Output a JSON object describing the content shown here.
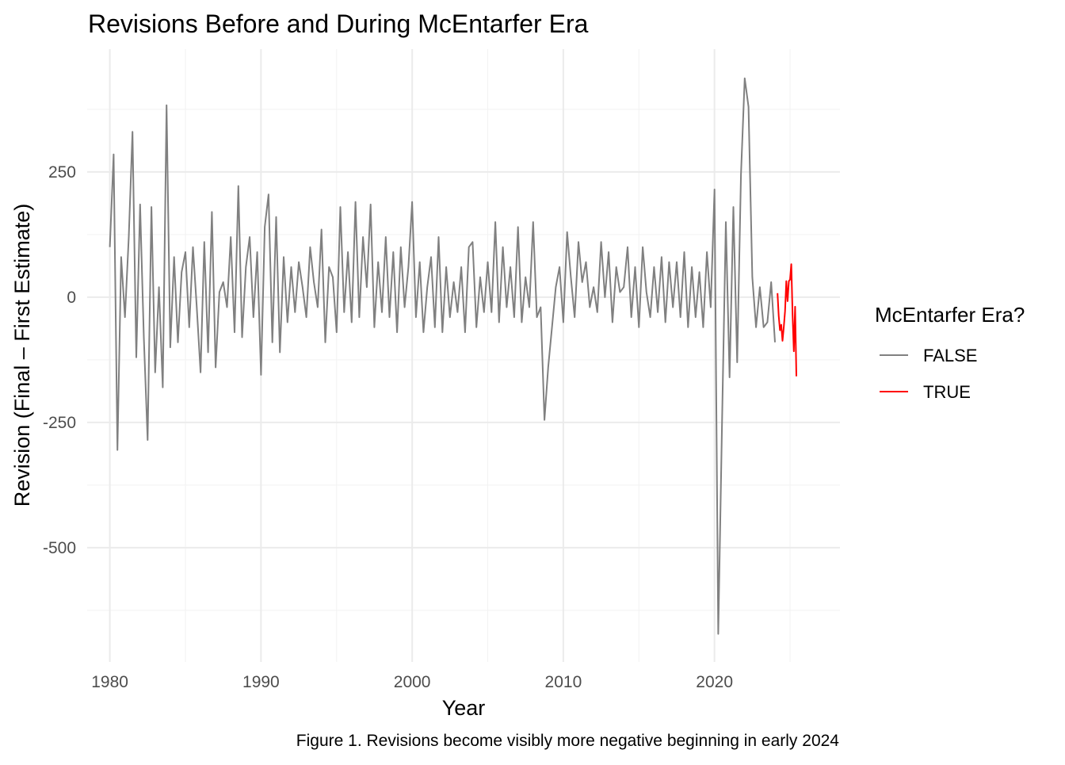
{
  "chart_data": {
    "type": "line",
    "title": "Revisions Before and During McEntarfer Era",
    "xlabel": "Year",
    "ylabel": "Revision (Final – First Estimate)",
    "caption": "Figure 1. Revisions become visibly more negative beginning in early 2024",
    "xlim": [
      1978.5,
      2028.3
    ],
    "ylim": [
      -728,
      495
    ],
    "x_ticks": [
      1980,
      1990,
      2000,
      2010,
      2020
    ],
    "x_tick_labels": [
      "1980",
      "1990",
      "2000",
      "2010",
      "2020"
    ],
    "y_ticks": [
      250,
      0,
      -250,
      -500
    ],
    "y_tick_labels": [
      "250",
      "0",
      "-250",
      "-500"
    ],
    "grid": true,
    "legend": {
      "title": "McEntarfer Era?",
      "placement": "right",
      "entries": [
        {
          "label": "FALSE",
          "color": "#808080"
        },
        {
          "label": "TRUE",
          "color": "#ff0000"
        }
      ]
    },
    "series": [
      {
        "name": "FALSE",
        "color": "#808080",
        "x_start": 1980.0,
        "x_step": 0.25,
        "values": [
          100,
          285,
          -305,
          80,
          -40,
          120,
          330,
          -120,
          185,
          -80,
          -285,
          180,
          -150,
          20,
          -180,
          383,
          -100,
          80,
          -90,
          50,
          90,
          -60,
          100,
          -20,
          -150,
          110,
          -110,
          170,
          -140,
          10,
          30,
          -20,
          120,
          -70,
          222,
          -80,
          60,
          120,
          -40,
          90,
          -155,
          140,
          205,
          -90,
          160,
          -110,
          80,
          -50,
          60,
          -30,
          70,
          20,
          -40,
          100,
          30,
          -20,
          135,
          -90,
          60,
          40,
          -70,
          180,
          -30,
          90,
          -50,
          190,
          -40,
          120,
          20,
          185,
          -60,
          70,
          -30,
          120,
          -40,
          90,
          -70,
          100,
          -20,
          60,
          190,
          -40,
          70,
          -70,
          20,
          80,
          -60,
          120,
          -70,
          60,
          -40,
          30,
          -30,
          60,
          -70,
          100,
          110,
          -60,
          40,
          -30,
          70,
          -30,
          150,
          -50,
          100,
          -20,
          60,
          -40,
          140,
          -50,
          40,
          -20,
          150,
          -40,
          -20,
          -245,
          -140,
          -60,
          20,
          60,
          -50,
          130,
          40,
          -40,
          110,
          30,
          70,
          -20,
          20,
          -30,
          110,
          0,
          90,
          -50,
          60,
          10,
          20,
          100,
          -40,
          60,
          -60,
          100,
          10,
          -40,
          60,
          -30,
          80,
          -50,
          70,
          -20,
          70,
          -40,
          90,
          -60,
          60,
          -40,
          50,
          -60,
          90,
          -20,
          215,
          -672,
          -250,
          150,
          -160,
          180,
          -130,
          245,
          437,
          380,
          40,
          -60,
          20,
          -60,
          -50,
          30,
          -90
        ]
      },
      {
        "name": "TRUE",
        "color": "#ff0000",
        "x_start": 2024.167,
        "x_step": 0.0833,
        "values": [
          8,
          -37,
          -66,
          -55,
          -87,
          -60,
          -28,
          32,
          -8,
          32,
          35,
          66,
          -35,
          -108,
          -19,
          -158
        ]
      }
    ]
  }
}
